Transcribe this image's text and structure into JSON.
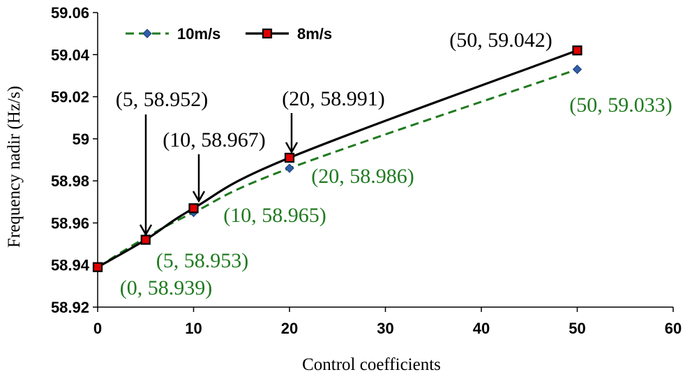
{
  "chart_data": {
    "type": "line",
    "title": "",
    "xlabel": "Control coefficients",
    "ylabel": "Frequency nadir (Hz/s)",
    "xlim": [
      0,
      60
    ],
    "ylim": [
      58.92,
      59.06
    ],
    "x_ticks": [
      "0",
      "10",
      "20",
      "30",
      "40",
      "50",
      "60"
    ],
    "y_ticks": [
      "58.92",
      "58.94",
      "58.96",
      "58.98",
      "59",
      "59.02",
      "59.04",
      "59.06"
    ],
    "grid": false,
    "legend_position": "top-left",
    "series": [
      {
        "name": "10m/s",
        "color": "#1f7a1f",
        "marker_color": "#2e5fa8",
        "line_style": "dashed",
        "marker": "diamond",
        "x": [
          0,
          5,
          10,
          20,
          50
        ],
        "values": [
          58.939,
          58.953,
          58.965,
          58.986,
          59.033
        ]
      },
      {
        "name": "8m/s",
        "color": "#000000",
        "marker_color": "#e00000",
        "line_style": "solid",
        "marker": "square",
        "x": [
          0,
          5,
          10,
          20,
          50
        ],
        "values": [
          58.939,
          58.952,
          58.967,
          58.991,
          59.042
        ]
      }
    ],
    "annotations": [
      {
        "text": "(5, 58.952)",
        "series": "8m/s",
        "arrow": true,
        "color": "#000000"
      },
      {
        "text": "(10, 58.967)",
        "series": "8m/s",
        "arrow": true,
        "color": "#000000"
      },
      {
        "text": "(20, 58.991)",
        "series": "8m/s",
        "arrow": true,
        "color": "#000000"
      },
      {
        "text": "(50, 59.042)",
        "series": "8m/s",
        "arrow": false,
        "color": "#000000"
      },
      {
        "text": "(0, 58.939)",
        "series": "10m/s",
        "arrow": false,
        "color": "#1f7a1f"
      },
      {
        "text": "(5, 58.953)",
        "series": "10m/s",
        "arrow": false,
        "color": "#1f7a1f"
      },
      {
        "text": "(10, 58.965)",
        "series": "10m/s",
        "arrow": false,
        "color": "#1f7a1f"
      },
      {
        "text": "(20, 58.986)",
        "series": "10m/s",
        "arrow": false,
        "color": "#1f7a1f"
      },
      {
        "text": "(50, 59.033)",
        "series": "10m/s",
        "arrow": false,
        "color": "#1f7a1f"
      }
    ]
  }
}
